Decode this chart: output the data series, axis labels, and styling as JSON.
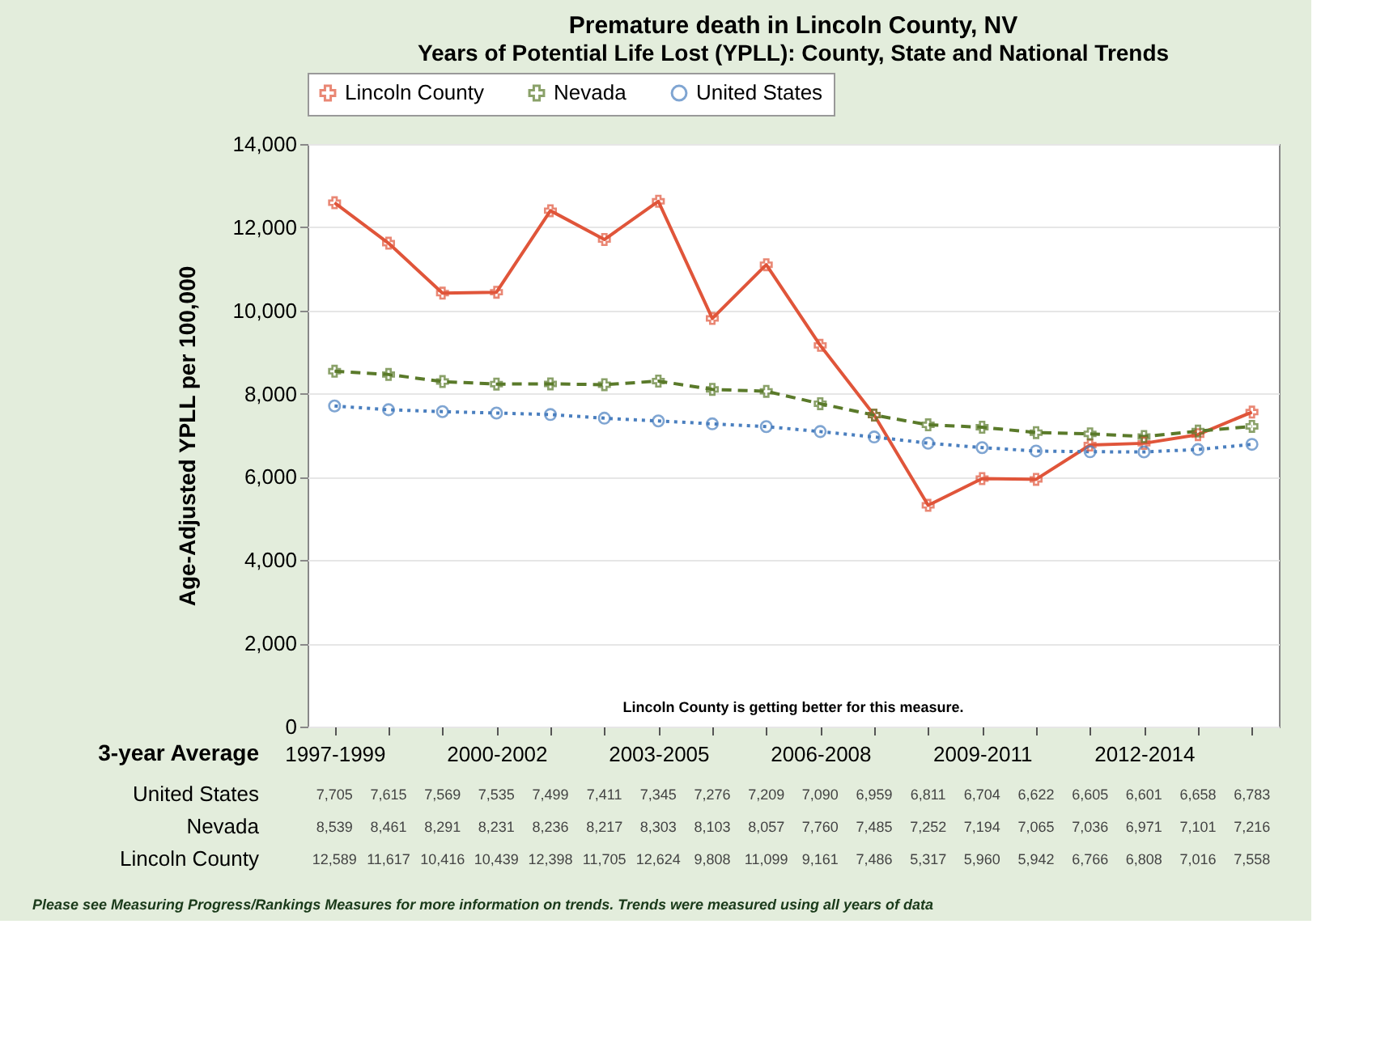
{
  "chart_data": {
    "type": "line",
    "title": "Premature death in Lincoln County, NV",
    "subtitle": "Years of Potential Life Lost (YPLL): County, State and National Trends",
    "xlabel": "3-year Average",
    "ylabel": "Age-Adjusted YPLL per 100,000",
    "categories": [
      "1997-1999",
      null,
      null,
      "2000-2002",
      null,
      null,
      "2003-2005",
      null,
      null,
      "2006-2008",
      null,
      null,
      "2009-2011",
      null,
      null,
      "2012-2014",
      null,
      null
    ],
    "series": [
      {
        "name": "Lincoln County",
        "color": "#e0553a",
        "marker": "cross",
        "line_style": "solid",
        "values": [
          12589,
          11617,
          10416,
          10439,
          12398,
          11705,
          12624,
          9808,
          11099,
          9161,
          7486,
          5317,
          5960,
          5942,
          6766,
          6808,
          7016,
          7558
        ],
        "value_labels": [
          "12,589",
          "11,617",
          "10,416",
          "10,439",
          "12,398",
          "11,705",
          "12,624",
          "9,808",
          "11,099",
          "9,161",
          "7,486",
          "5,317",
          "5,960",
          "5,942",
          "6,766",
          "6,808",
          "7,016",
          "7,558"
        ]
      },
      {
        "name": "Nevada",
        "color": "#5a7a2a",
        "marker": "cross",
        "line_style": "dashed",
        "values": [
          8539,
          8461,
          8291,
          8231,
          8236,
          8217,
          8303,
          8103,
          8057,
          7760,
          7485,
          7252,
          7194,
          7065,
          7036,
          6971,
          7101,
          7216
        ],
        "value_labels": [
          "8,539",
          "8,461",
          "8,291",
          "8,231",
          "8,236",
          "8,217",
          "8,303",
          "8,103",
          "8,057",
          "7,760",
          "7,485",
          "7,252",
          "7,194",
          "7,065",
          "7,036",
          "6,971",
          "7,101",
          "7,216"
        ]
      },
      {
        "name": "United States",
        "color": "#4a7fbf",
        "marker": "circle",
        "line_style": "dotted",
        "values": [
          7705,
          7615,
          7569,
          7535,
          7499,
          7411,
          7345,
          7276,
          7209,
          7090,
          6959,
          6811,
          6704,
          6622,
          6605,
          6601,
          6658,
          6783
        ],
        "value_labels": [
          "7,705",
          "7,615",
          "7,569",
          "7,535",
          "7,499",
          "7,411",
          "7,345",
          "7,276",
          "7,209",
          "7,090",
          "6,959",
          "6,811",
          "6,704",
          "6,622",
          "6,605",
          "6,601",
          "6,658",
          "6,783"
        ]
      }
    ],
    "ylim": [
      0,
      14000
    ],
    "yticks": [
      0,
      {
        "value": 2000,
        "label": "2,000"
      },
      {
        "value": 4000,
        "label": "4,000"
      },
      {
        "value": 6000,
        "label": "6,000"
      },
      {
        "value": 8000,
        "label": "8,000"
      },
      {
        "value": 10000,
        "label": "10,000"
      },
      {
        "value": 12000,
        "label": "12,000"
      },
      {
        "value": 14000,
        "label": "14,000"
      }
    ],
    "grid": "y",
    "legend": "top",
    "annotations": [
      "Lincoln County is getting better for this measure.",
      "Please see Measuring Progress/Rankings Measures for more information on trends. Trends were measured using all years of data"
    ]
  }
}
